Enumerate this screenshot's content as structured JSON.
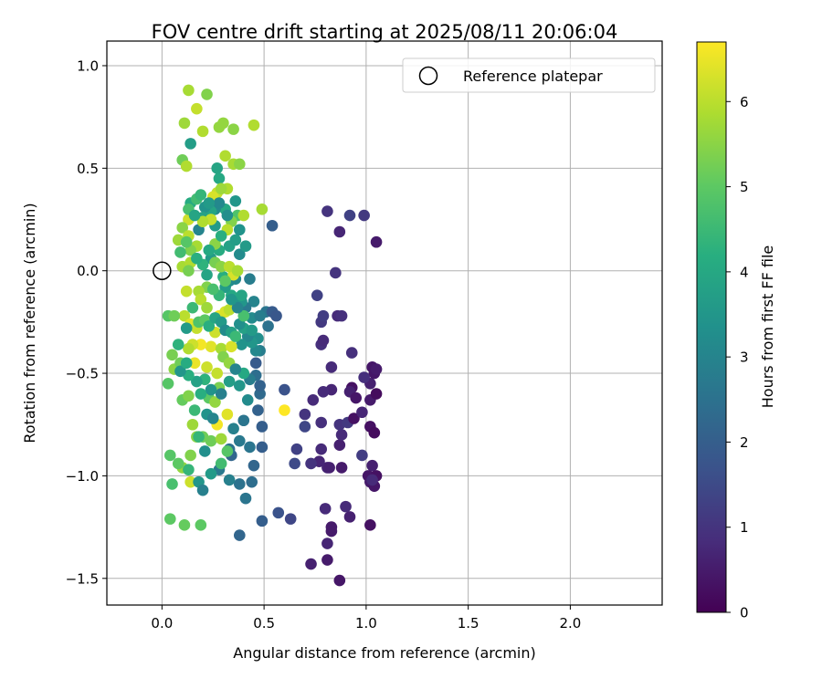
{
  "chart_data": {
    "type": "scatter",
    "title": "FOV centre drift starting at 2025/08/11 20:06:04",
    "xlabel": "Angular distance from reference (arcmin)",
    "ylabel": "Rotation from reference (arcmin)",
    "xlim": [
      -0.27,
      2.45
    ],
    "ylim": [
      -1.63,
      1.12
    ],
    "x_ticks": [
      "0.0",
      "0.5",
      "1.0",
      "1.5",
      "2.0"
    ],
    "x_tick_values": [
      0,
      0.5,
      1.0,
      1.5,
      2.0
    ],
    "y_ticks": [
      "1.0",
      "0.5",
      "0.0",
      "−0.5",
      "−1.0",
      "−1.5"
    ],
    "y_tick_values": [
      1.0,
      0.5,
      0.0,
      -0.5,
      -1.0,
      -1.5
    ],
    "grid": true,
    "legend": {
      "label": "Reference platepar",
      "placement": "top-right"
    },
    "reference_point": {
      "x": 0.0,
      "y": 0.0
    },
    "colorbar": {
      "label": "Hours from first FF file",
      "range": [
        0,
        6.7
      ],
      "ticks": [
        "0",
        "1",
        "2",
        "3",
        "4",
        "5",
        "6"
      ],
      "tick_values": [
        0,
        1,
        2,
        3,
        4,
        5,
        6
      ],
      "colormap": "viridis"
    },
    "points": [
      [
        0.87,
        -1.51,
        0.4
      ],
      [
        0.73,
        -1.43,
        0.6
      ],
      [
        0.81,
        -1.41,
        0.5
      ],
      [
        0.81,
        -1.33,
        0.7
      ],
      [
        0.83,
        -1.27,
        0.5
      ],
      [
        0.83,
        -1.25,
        0.5
      ],
      [
        0.92,
        -1.2,
        0.6
      ],
      [
        0.9,
        -1.15,
        0.8
      ],
      [
        0.8,
        -1.16,
        0.8
      ],
      [
        1.02,
        -1.24,
        0.3
      ],
      [
        0.81,
        -0.96,
        0.7
      ],
      [
        0.82,
        -0.96,
        0.6
      ],
      [
        0.88,
        -0.96,
        0.5
      ],
      [
        0.77,
        -0.93,
        0.7
      ],
      [
        0.73,
        -0.94,
        1.0
      ],
      [
        0.78,
        -0.87,
        0.8
      ],
      [
        0.87,
        -0.85,
        0.6
      ],
      [
        0.88,
        -0.8,
        0.8
      ],
      [
        0.87,
        -0.75,
        1.0
      ],
      [
        0.78,
        -0.74,
        0.9
      ],
      [
        0.91,
        -0.74,
        1.1
      ],
      [
        0.94,
        -0.72,
        0.3
      ],
      [
        0.98,
        -0.69,
        0.7
      ],
      [
        1.02,
        -0.76,
        0.3
      ],
      [
        1.04,
        -0.79,
        0.2
      ],
      [
        0.98,
        -0.9,
        1.2
      ],
      [
        1.03,
        -0.95,
        0.6
      ],
      [
        1.01,
        -1.0,
        0.4
      ],
      [
        1.02,
        -1.03,
        0.5
      ],
      [
        1.05,
        -1.0,
        0.3
      ],
      [
        1.04,
        -1.05,
        0.4
      ],
      [
        1.03,
        -1.02,
        0.8
      ],
      [
        0.93,
        -0.57,
        0.3
      ],
      [
        0.92,
        -0.59,
        0.6
      ],
      [
        0.95,
        -0.62,
        0.4
      ],
      [
        1.02,
        -0.63,
        0.5
      ],
      [
        1.05,
        -0.6,
        0.2
      ],
      [
        1.02,
        -0.55,
        0.6
      ],
      [
        1.04,
        -0.5,
        0.4
      ],
      [
        1.03,
        -0.47,
        0.4
      ],
      [
        1.05,
        -0.48,
        0.5
      ],
      [
        0.99,
        -0.52,
        0.9
      ],
      [
        0.83,
        -0.58,
        0.7
      ],
      [
        0.79,
        -0.59,
        0.8
      ],
      [
        0.74,
        -0.63,
        0.8
      ],
      [
        0.7,
        -0.7,
        1.0
      ],
      [
        0.7,
        -0.76,
        1.4
      ],
      [
        0.66,
        -0.87,
        1.3
      ],
      [
        0.65,
        -0.94,
        1.5
      ],
      [
        0.63,
        -1.21,
        1.4
      ],
      [
        0.78,
        -0.36,
        0.9
      ],
      [
        0.79,
        -0.34,
        0.8
      ],
      [
        0.83,
        -0.47,
        0.8
      ],
      [
        0.93,
        -0.4,
        0.9
      ],
      [
        0.86,
        -0.22,
        0.8
      ],
      [
        0.88,
        -0.22,
        0.9
      ],
      [
        0.78,
        -0.25,
        1.1
      ],
      [
        0.79,
        -0.22,
        1.2
      ],
      [
        0.76,
        -0.12,
        1.3
      ],
      [
        0.85,
        -0.01,
        1.0
      ],
      [
        0.87,
        0.19,
        0.7
      ],
      [
        0.81,
        0.29,
        1.0
      ],
      [
        0.92,
        0.27,
        1.3
      ],
      [
        0.99,
        0.27,
        1.1
      ],
      [
        1.05,
        0.14,
        0.5
      ],
      [
        0.54,
        0.22,
        2.0
      ],
      [
        0.51,
        -0.2,
        2.6
      ],
      [
        0.52,
        -0.27,
        2.5
      ],
      [
        0.54,
        -0.2,
        1.9
      ],
      [
        0.56,
        -0.22,
        1.8
      ],
      [
        0.49,
        -0.76,
        2.0
      ],
      [
        0.49,
        -0.86,
        2.0
      ],
      [
        0.45,
        -0.95,
        2.2
      ],
      [
        0.44,
        -1.03,
        2.4
      ],
      [
        0.49,
        -1.22,
        2.0
      ],
      [
        0.57,
        -1.18,
        1.7
      ],
      [
        0.38,
        -1.29,
        2.2
      ],
      [
        0.38,
        -1.04,
        2.5
      ],
      [
        0.41,
        -1.11,
        2.6
      ],
      [
        0.33,
        -1.02,
        2.9
      ],
      [
        0.28,
        -0.97,
        2.7
      ],
      [
        0.34,
        -0.9,
        2.2
      ],
      [
        0.43,
        -0.86,
        2.6
      ],
      [
        0.38,
        -0.83,
        2.7
      ],
      [
        0.33,
        -0.87,
        2.5
      ],
      [
        0.6,
        -0.58,
        1.7
      ],
      [
        0.6,
        -0.68,
        6.7
      ],
      [
        0.48,
        -0.6,
        2.3
      ],
      [
        0.47,
        -0.68,
        2.1
      ],
      [
        0.48,
        -0.56,
        2.1
      ],
      [
        0.46,
        -0.51,
        2.4
      ],
      [
        0.46,
        -0.45,
        1.9
      ],
      [
        0.48,
        -0.39,
        2.8
      ],
      [
        0.46,
        -0.39,
        3.1
      ],
      [
        0.47,
        -0.33,
        3.3
      ],
      [
        0.44,
        -0.35,
        3.5
      ],
      [
        0.42,
        -0.32,
        3.1
      ],
      [
        0.4,
        -0.28,
        3.8
      ],
      [
        0.39,
        -0.36,
        3.4
      ],
      [
        0.44,
        -0.29,
        3.6
      ],
      [
        0.44,
        -0.23,
        3.2
      ],
      [
        0.48,
        -0.22,
        2.8
      ],
      [
        0.45,
        -0.15,
        3.0
      ],
      [
        0.41,
        -0.18,
        2.7
      ],
      [
        0.39,
        -0.15,
        3.5
      ],
      [
        0.39,
        -0.12,
        3.9
      ],
      [
        0.34,
        -0.12,
        4.0
      ],
      [
        0.31,
        -0.08,
        3.7
      ],
      [
        0.33,
        -0.05,
        3.3
      ],
      [
        0.3,
        -0.03,
        4.2
      ],
      [
        0.24,
        0.06,
        3.6
      ],
      [
        0.28,
        0.1,
        4.1
      ],
      [
        0.33,
        0.12,
        3.8
      ],
      [
        0.36,
        0.15,
        3.7
      ],
      [
        0.38,
        0.08,
        3.2
      ],
      [
        0.41,
        0.12,
        3.6
      ],
      [
        0.43,
        -0.04,
        2.8
      ],
      [
        0.36,
        -0.04,
        3.1
      ],
      [
        0.37,
        0.27,
        4.8
      ],
      [
        0.36,
        0.34,
        3.5
      ],
      [
        0.31,
        0.3,
        4.0
      ],
      [
        0.26,
        0.3,
        3.2
      ],
      [
        0.26,
        0.22,
        3.6
      ],
      [
        0.24,
        0.29,
        3.9
      ],
      [
        0.21,
        0.31,
        3.4
      ],
      [
        0.2,
        0.26,
        3.8
      ],
      [
        0.18,
        0.2,
        3.0
      ],
      [
        0.14,
        0.33,
        4.1
      ],
      [
        0.17,
        0.35,
        4.6
      ],
      [
        0.28,
        0.45,
        4.0
      ],
      [
        0.27,
        0.5,
        3.9
      ],
      [
        0.14,
        0.62,
        3.7
      ],
      [
        0.22,
        0.86,
        5.4
      ],
      [
        0.13,
        0.88,
        5.8
      ],
      [
        0.11,
        0.72,
        5.7
      ],
      [
        0.17,
        0.79,
        6.1
      ],
      [
        0.2,
        0.68,
        5.9
      ],
      [
        0.28,
        0.7,
        5.6
      ],
      [
        0.3,
        0.72,
        5.6
      ],
      [
        0.35,
        0.69,
        5.5
      ],
      [
        0.45,
        0.71,
        5.9
      ],
      [
        0.31,
        0.56,
        5.9
      ],
      [
        0.35,
        0.52,
        5.8
      ],
      [
        0.38,
        0.52,
        5.5
      ],
      [
        0.1,
        0.54,
        5.2
      ],
      [
        0.12,
        0.51,
        5.9
      ],
      [
        0.32,
        0.4,
        5.9
      ],
      [
        0.27,
        0.38,
        6.1
      ],
      [
        0.25,
        0.36,
        6.3
      ],
      [
        0.29,
        0.4,
        5.7
      ],
      [
        0.49,
        0.3,
        5.8
      ],
      [
        0.4,
        0.27,
        5.9
      ],
      [
        0.34,
        0.24,
        5.4
      ],
      [
        0.32,
        0.2,
        6.0
      ],
      [
        0.24,
        0.25,
        6.1
      ],
      [
        0.2,
        0.24,
        5.9
      ],
      [
        0.13,
        0.25,
        6.2
      ],
      [
        0.1,
        0.21,
        5.5
      ],
      [
        0.08,
        0.15,
        5.7
      ],
      [
        0.13,
        0.17,
        6.0
      ],
      [
        0.17,
        0.12,
        5.8
      ],
      [
        0.14,
        0.1,
        5.4
      ],
      [
        0.26,
        0.13,
        5.5
      ],
      [
        0.26,
        0.04,
        5.3
      ],
      [
        0.29,
        0.02,
        5.5
      ],
      [
        0.35,
        -0.02,
        6.3
      ],
      [
        0.33,
        0.02,
        6.0
      ],
      [
        0.37,
        0.0,
        5.8
      ],
      [
        0.31,
        -0.05,
        5.0
      ],
      [
        0.22,
        -0.08,
        5.4
      ],
      [
        0.18,
        -0.1,
        5.8
      ],
      [
        0.12,
        -0.1,
        6.1
      ],
      [
        0.1,
        0.02,
        5.8
      ],
      [
        0.14,
        0.04,
        5.9
      ],
      [
        0.11,
        -0.22,
        6.0
      ],
      [
        0.14,
        -0.26,
        6.4
      ],
      [
        0.17,
        -0.28,
        6.1
      ],
      [
        0.19,
        -0.14,
        6.0
      ],
      [
        0.22,
        -0.18,
        5.7
      ],
      [
        0.28,
        -0.22,
        6.5
      ],
      [
        0.31,
        -0.2,
        6.3
      ],
      [
        0.33,
        -0.19,
        6.0
      ],
      [
        0.26,
        -0.3,
        6.2
      ],
      [
        0.24,
        -0.37,
        6.4
      ],
      [
        0.19,
        -0.36,
        6.6
      ],
      [
        0.15,
        -0.36,
        6.2
      ],
      [
        0.13,
        -0.38,
        5.9
      ],
      [
        0.16,
        -0.45,
        6.5
      ],
      [
        0.22,
        -0.47,
        6.2
      ],
      [
        0.27,
        -0.5,
        6.1
      ],
      [
        0.29,
        -0.38,
        5.8
      ],
      [
        0.34,
        -0.37,
        6.3
      ],
      [
        0.3,
        -0.42,
        5.4
      ],
      [
        0.33,
        -0.45,
        5.6
      ],
      [
        0.05,
        -0.41,
        5.3
      ],
      [
        0.06,
        -0.48,
        5.5
      ],
      [
        0.09,
        -0.45,
        5.2
      ],
      [
        0.03,
        -0.22,
        4.9
      ],
      [
        0.06,
        -0.22,
        5.2
      ],
      [
        0.03,
        -0.55,
        4.9
      ],
      [
        0.1,
        -0.63,
        5.1
      ],
      [
        0.13,
        -0.61,
        5.4
      ],
      [
        0.23,
        -0.62,
        5.0
      ],
      [
        0.28,
        -0.57,
        5.3
      ],
      [
        0.26,
        -0.64,
        5.6
      ],
      [
        0.32,
        -0.7,
        6.4
      ],
      [
        0.27,
        -0.75,
        6.6
      ],
      [
        0.24,
        -0.83,
        5.2
      ],
      [
        0.29,
        -0.82,
        5.7
      ],
      [
        0.32,
        -0.88,
        4.9
      ],
      [
        0.15,
        -0.75,
        5.7
      ],
      [
        0.17,
        -0.81,
        5.5
      ],
      [
        0.2,
        -0.81,
        5.2
      ],
      [
        0.14,
        -0.9,
        5.4
      ],
      [
        0.1,
        -0.96,
        5.6
      ],
      [
        0.14,
        -1.03,
        6.2
      ],
      [
        0.08,
        -0.94,
        5.0
      ],
      [
        0.04,
        -0.9,
        4.9
      ],
      [
        0.05,
        -1.04,
        4.7
      ],
      [
        0.04,
        -1.21,
        5.0
      ],
      [
        0.11,
        -1.24,
        5.1
      ],
      [
        0.19,
        -1.24,
        5.0
      ],
      [
        0.13,
        -0.97,
        4.4
      ],
      [
        0.18,
        -1.03,
        3.5
      ],
      [
        0.2,
        -1.07,
        2.9
      ],
      [
        0.24,
        -0.99,
        3.6
      ],
      [
        0.29,
        -0.94,
        4.6
      ],
      [
        0.21,
        -0.88,
        3.3
      ],
      [
        0.18,
        -0.81,
        4.4
      ],
      [
        0.16,
        -0.68,
        4.5
      ],
      [
        0.22,
        -0.7,
        3.4
      ],
      [
        0.25,
        -0.72,
        3.0
      ],
      [
        0.35,
        -0.77,
        2.9
      ],
      [
        0.4,
        -0.73,
        2.6
      ],
      [
        0.42,
        -0.63,
        3.2
      ],
      [
        0.43,
        -0.53,
        2.8
      ],
      [
        0.38,
        -0.56,
        3.5
      ],
      [
        0.4,
        -0.5,
        4.0
      ],
      [
        0.36,
        -0.48,
        3.0
      ],
      [
        0.33,
        -0.54,
        3.7
      ],
      [
        0.29,
        -0.6,
        2.9
      ],
      [
        0.24,
        -0.58,
        3.4
      ],
      [
        0.21,
        -0.53,
        4.3
      ],
      [
        0.19,
        -0.6,
        4.2
      ],
      [
        0.17,
        -0.54,
        3.8
      ],
      [
        0.13,
        -0.51,
        4.2
      ],
      [
        0.09,
        -0.49,
        3.5
      ],
      [
        0.12,
        -0.45,
        4.1
      ],
      [
        0.08,
        -0.36,
        4.3
      ],
      [
        0.12,
        -0.28,
        3.6
      ],
      [
        0.15,
        -0.18,
        4.5
      ],
      [
        0.18,
        -0.25,
        4.8
      ],
      [
        0.21,
        -0.24,
        5.0
      ],
      [
        0.23,
        -0.27,
        4.2
      ],
      [
        0.26,
        -0.23,
        3.9
      ],
      [
        0.29,
        -0.25,
        3.6
      ],
      [
        0.31,
        -0.29,
        3.2
      ],
      [
        0.34,
        -0.3,
        3.8
      ],
      [
        0.36,
        -0.32,
        4.5
      ],
      [
        0.38,
        -0.26,
        3.3
      ],
      [
        0.4,
        -0.22,
        4.7
      ],
      [
        0.37,
        -0.18,
        3.0
      ],
      [
        0.34,
        -0.14,
        3.5
      ],
      [
        0.28,
        -0.12,
        4.4
      ],
      [
        0.25,
        -0.09,
        4.7
      ],
      [
        0.22,
        -0.02,
        3.9
      ],
      [
        0.2,
        0.03,
        4.3
      ],
      [
        0.17,
        0.06,
        4.2
      ],
      [
        0.23,
        0.1,
        4.0
      ],
      [
        0.29,
        0.17,
        4.2
      ],
      [
        0.38,
        0.2,
        3.4
      ],
      [
        0.32,
        0.27,
        3.3
      ],
      [
        0.28,
        0.33,
        3.1
      ],
      [
        0.23,
        0.33,
        3.6
      ],
      [
        0.19,
        0.37,
        4.4
      ],
      [
        0.13,
        0.3,
        4.7
      ],
      [
        0.16,
        0.27,
        3.9
      ],
      [
        0.12,
        0.14,
        4.9
      ],
      [
        0.09,
        0.09,
        4.6
      ],
      [
        0.13,
        0.0,
        5.3
      ]
    ]
  }
}
